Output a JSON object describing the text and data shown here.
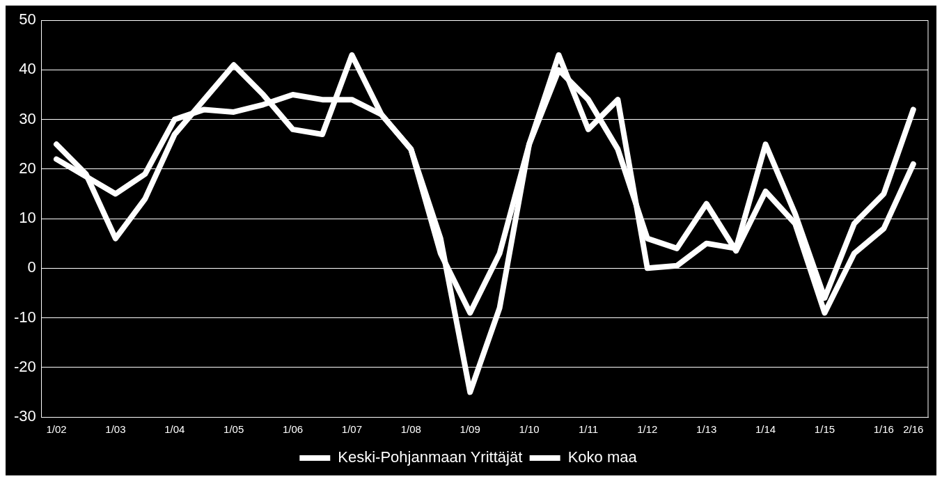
{
  "chart_data": {
    "type": "line",
    "categories": [
      "1/02",
      null,
      "1/03",
      null,
      "1/04",
      null,
      "1/05",
      null,
      "1/06",
      null,
      "1/07",
      null,
      "1/08",
      null,
      "1/09",
      null,
      "1/10",
      null,
      "1/11",
      null,
      "1/12",
      null,
      "1/13",
      null,
      "1/14",
      null,
      "1/15",
      null,
      "1/16",
      "2/16"
    ],
    "series": [
      {
        "name": "Keski-Pohjanmaan Yrittäjät",
        "color": "#ffffff",
        "values": [
          25,
          19,
          6,
          14,
          27,
          34,
          41,
          35,
          28,
          27,
          43,
          31,
          24,
          6,
          -25,
          -8,
          25,
          43,
          28,
          34,
          0,
          0.5,
          5,
          4,
          25,
          11,
          -6,
          9,
          15,
          32
        ]
      },
      {
        "name": "Koko maa",
        "color": "#ffffff",
        "values": [
          22,
          18.5,
          15,
          19,
          30,
          32,
          31.5,
          33,
          35,
          34,
          34,
          31,
          24,
          3,
          -9,
          3,
          25,
          40,
          34,
          24,
          6,
          4,
          13,
          3.5,
          15.5,
          9,
          -9,
          3,
          8,
          21
        ]
      }
    ],
    "ylim": [
      -30,
      50
    ],
    "yticks": [
      -30,
      -20,
      -10,
      0,
      10,
      20,
      30,
      40,
      50
    ],
    "grid": "y",
    "legend": "bottom",
    "marker": "none",
    "line_style": "solid"
  }
}
